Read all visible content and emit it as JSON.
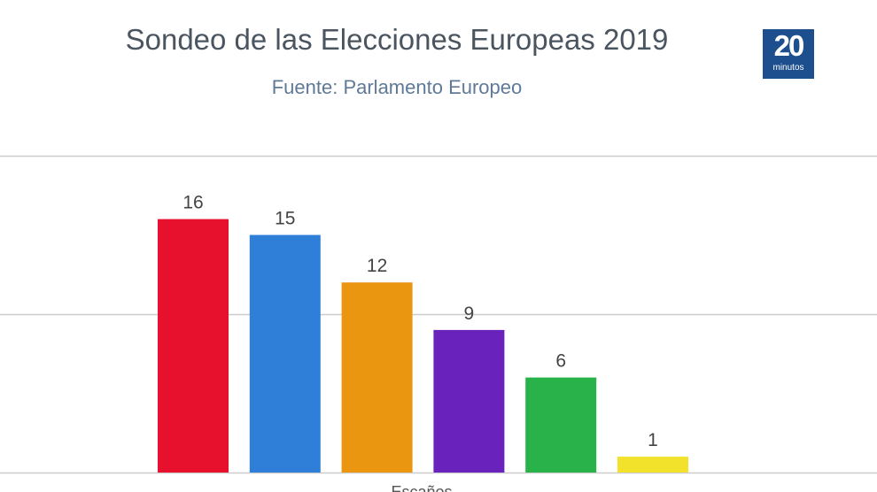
{
  "header": {
    "title": "Sondeo de las Elecciones Europeas 2019",
    "subtitle": "Fuente: Parlamento Europeo"
  },
  "logo": {
    "number": "20",
    "word": "minutos"
  },
  "chart_data": {
    "type": "bar",
    "title": "Sondeo de las Elecciones Europeas 2019",
    "subtitle": "Fuente: Parlamento Europeo",
    "xlabel": "Escaños",
    "ylabel": "",
    "ylim": [
      0,
      20
    ],
    "grid": true,
    "categories": [
      "",
      "",
      "",
      "",
      "",
      ""
    ],
    "values": [
      16,
      15,
      12,
      9,
      6,
      1
    ],
    "colors": [
      "#e8112d",
      "#2f7fd8",
      "#ea9610",
      "#6a22bc",
      "#29b24a",
      "#f3e22c"
    ]
  }
}
